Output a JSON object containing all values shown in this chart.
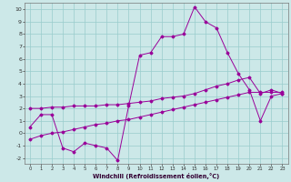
{
  "xlabel": "Windchill (Refroidissement éolien,°C)",
  "x_values": [
    0,
    1,
    2,
    3,
    4,
    5,
    6,
    7,
    8,
    9,
    10,
    11,
    12,
    13,
    14,
    15,
    16,
    17,
    18,
    19,
    20,
    21,
    22,
    23
  ],
  "line1_y": [
    0.5,
    1.5,
    1.5,
    -1.2,
    -1.5,
    -0.8,
    -1.0,
    -1.2,
    -2.2,
    2.2,
    6.3,
    6.5,
    7.8,
    7.8,
    8.0,
    10.2,
    9.0,
    8.5,
    6.5,
    4.8,
    3.5,
    1.0,
    3.0,
    3.2
  ],
  "line2_y": [
    2.0,
    2.0,
    2.1,
    2.1,
    2.2,
    2.2,
    2.2,
    2.3,
    2.3,
    2.4,
    2.5,
    2.6,
    2.8,
    2.9,
    3.0,
    3.2,
    3.5,
    3.8,
    4.0,
    4.3,
    4.5,
    3.2,
    3.5,
    3.2
  ],
  "line3_y": [
    -0.5,
    -0.2,
    0.0,
    0.1,
    0.3,
    0.5,
    0.7,
    0.8,
    1.0,
    1.1,
    1.3,
    1.5,
    1.7,
    1.9,
    2.1,
    2.3,
    2.5,
    2.7,
    2.9,
    3.1,
    3.3,
    3.3,
    3.3,
    3.3
  ],
  "line_color": "#990099",
  "bg_color": "#cce8e8",
  "grid_color": "#99cccc",
  "ylim": [
    -2.5,
    10.5
  ],
  "xlim": [
    -0.5,
    23.5
  ],
  "yticks": [
    -2,
    -1,
    0,
    1,
    2,
    3,
    4,
    5,
    6,
    7,
    8,
    9,
    10
  ],
  "xticks": [
    0,
    1,
    2,
    3,
    4,
    5,
    6,
    7,
    8,
    9,
    10,
    11,
    12,
    13,
    14,
    15,
    16,
    17,
    18,
    19,
    20,
    21,
    22,
    23
  ]
}
